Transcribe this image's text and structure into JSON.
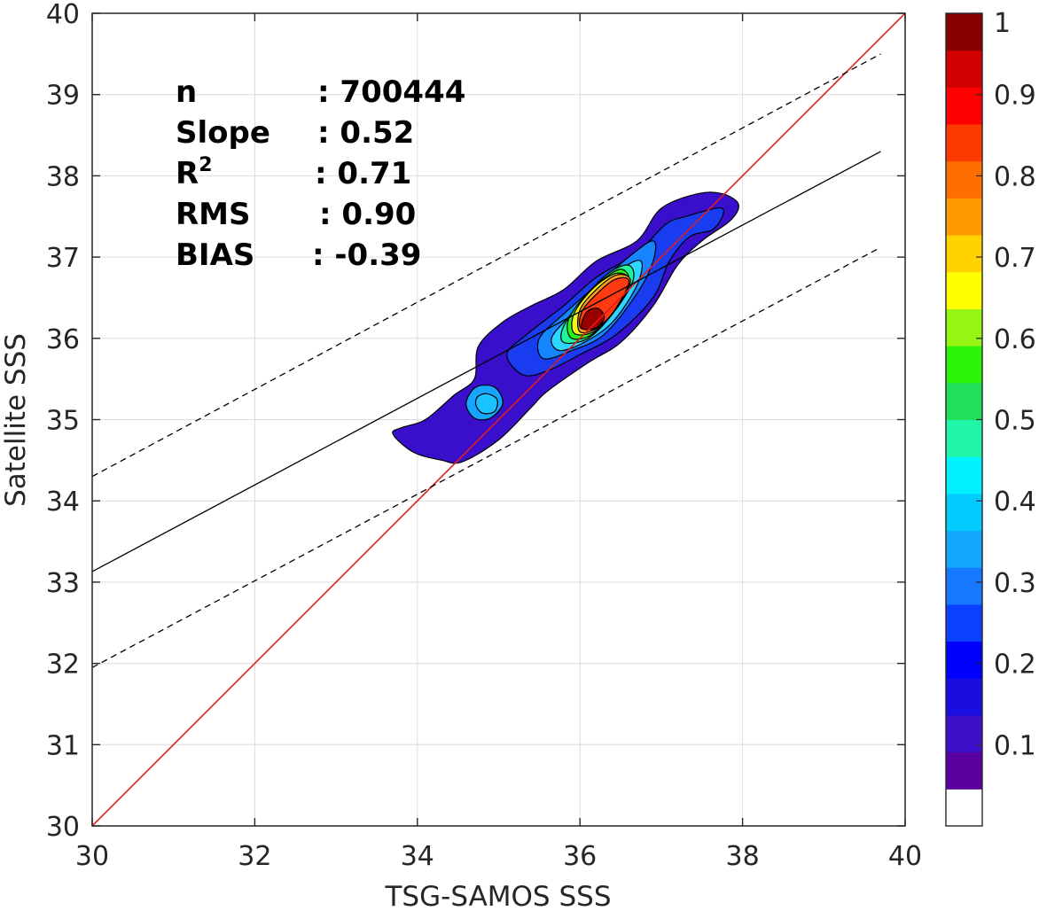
{
  "chart_data": {
    "type": "heatmap",
    "subtype": "filled-contour density scatter",
    "xlabel": "TSG-SAMOS SSS",
    "ylabel": "Satellite SSS",
    "xlim": [
      30,
      40
    ],
    "ylim": [
      30,
      40
    ],
    "xticks": [
      30,
      32,
      34,
      36,
      38,
      40
    ],
    "yticks": [
      30,
      31,
      32,
      33,
      34,
      35,
      36,
      37,
      38,
      39,
      40
    ],
    "grid": true,
    "stats": [
      {
        "label": "n",
        "value": ": 700444"
      },
      {
        "label": "Slope",
        "value": ": 0.52"
      },
      {
        "label": "R",
        "sup": "2",
        "value": ": 0.71"
      },
      {
        "label": "RMS",
        "value": ": 0.90"
      },
      {
        "label": "BIAS",
        "value": ": -0.39"
      }
    ],
    "lines": [
      {
        "kind": "one-to-one",
        "color": "#e41a1c",
        "style": "solid",
        "points": [
          [
            30,
            30
          ],
          [
            40,
            40
          ]
        ]
      },
      {
        "kind": "regression",
        "color": "#000000",
        "style": "solid",
        "points": [
          [
            30,
            33.13
          ],
          [
            39.7,
            38.3
          ]
        ]
      },
      {
        "kind": "upper-bound",
        "color": "#000000",
        "style": "dashed",
        "points": [
          [
            30,
            34.3
          ],
          [
            39.7,
            39.5
          ]
        ]
      },
      {
        "kind": "lower-bound",
        "color": "#000000",
        "style": "dashed",
        "points": [
          [
            30,
            31.95
          ],
          [
            39.7,
            37.12
          ]
        ]
      }
    ],
    "density": {
      "main_peak": {
        "x": 36.2,
        "y": 36.3
      },
      "secondary_peak": {
        "x": 34.9,
        "y": 35.2
      },
      "contours": [
        {
          "level": 0.05,
          "color": "#3a0fcb",
          "points": [
            [
              33.8,
              34.9
            ],
            [
              33.7,
              34.82
            ],
            [
              33.95,
              34.6
            ],
            [
              34.3,
              34.5
            ],
            [
              34.55,
              34.48
            ],
            [
              35.0,
              34.75
            ],
            [
              35.4,
              35.15
            ],
            [
              35.6,
              35.35
            ],
            [
              36.1,
              35.7
            ],
            [
              36.5,
              35.95
            ],
            [
              36.9,
              36.4
            ],
            [
              37.2,
              36.9
            ],
            [
              37.5,
              37.2
            ],
            [
              37.85,
              37.45
            ],
            [
              37.95,
              37.65
            ],
            [
              37.75,
              37.78
            ],
            [
              37.45,
              37.78
            ],
            [
              37.0,
              37.6
            ],
            [
              36.7,
              37.2
            ],
            [
              36.2,
              36.95
            ],
            [
              35.8,
              36.6
            ],
            [
              35.4,
              36.4
            ],
            [
              35.05,
              36.2
            ],
            [
              34.75,
              35.9
            ],
            [
              34.7,
              35.5
            ],
            [
              34.45,
              35.3
            ],
            [
              34.1,
              35.0
            ]
          ]
        },
        {
          "level": 0.15,
          "color": "#1a3cf0",
          "points": [
            [
              35.3,
              35.55
            ],
            [
              35.6,
              35.6
            ],
            [
              36.0,
              35.8
            ],
            [
              36.45,
              36.05
            ],
            [
              36.9,
              36.5
            ],
            [
              37.1,
              36.95
            ],
            [
              37.35,
              37.25
            ],
            [
              37.65,
              37.35
            ],
            [
              37.75,
              37.6
            ],
            [
              37.3,
              37.5
            ],
            [
              37.05,
              37.4
            ],
            [
              36.7,
              37.05
            ],
            [
              36.2,
              36.75
            ],
            [
              35.8,
              36.4
            ],
            [
              35.35,
              36.05
            ],
            [
              35.1,
              35.8
            ]
          ]
        },
        {
          "level": 0.25,
          "color": "#1685ff",
          "points": [
            [
              35.55,
              35.75
            ],
            [
              35.9,
              35.85
            ],
            [
              36.3,
              36.05
            ],
            [
              36.7,
              36.55
            ],
            [
              36.9,
              36.95
            ],
            [
              36.9,
              37.2
            ],
            [
              36.6,
              37.0
            ],
            [
              36.2,
              36.65
            ],
            [
              35.8,
              36.3
            ],
            [
              35.5,
              36.0
            ]
          ]
        },
        {
          "level": 0.35,
          "color": "#2dd6ff",
          "points": [
            [
              35.75,
              35.85
            ],
            [
              36.05,
              35.95
            ],
            [
              36.4,
              36.2
            ],
            [
              36.7,
              36.65
            ],
            [
              36.75,
              36.95
            ],
            [
              36.5,
              36.85
            ],
            [
              36.15,
              36.55
            ],
            [
              35.85,
              36.25
            ],
            [
              35.65,
              36.0
            ]
          ]
        },
        {
          "level": 0.45,
          "color": "#1ff59a",
          "points": [
            [
              35.8,
              35.95
            ],
            [
              36.1,
              36.0
            ],
            [
              36.4,
              36.3
            ],
            [
              36.65,
              36.7
            ],
            [
              36.6,
              36.9
            ],
            [
              36.35,
              36.8
            ],
            [
              36.05,
              36.5
            ],
            [
              35.8,
              36.15
            ]
          ]
        },
        {
          "level": 0.55,
          "color": "#2cf31a",
          "points": [
            [
              35.9,
              36.0
            ],
            [
              36.15,
              36.05
            ],
            [
              36.4,
              36.35
            ],
            [
              36.6,
              36.7
            ],
            [
              36.5,
              36.85
            ],
            [
              36.25,
              36.7
            ],
            [
              36.0,
              36.45
            ],
            [
              35.85,
              36.2
            ]
          ]
        },
        {
          "level": 0.65,
          "color": "#f5f51a",
          "points": [
            [
              35.95,
              36.05
            ],
            [
              36.2,
              36.1
            ],
            [
              36.45,
              36.4
            ],
            [
              36.6,
              36.72
            ],
            [
              36.45,
              36.8
            ],
            [
              36.2,
              36.65
            ],
            [
              35.98,
              36.4
            ],
            [
              35.9,
              36.2
            ]
          ]
        },
        {
          "level": 0.75,
          "color": "#ff9a1a",
          "points": [
            [
              36.0,
              36.08
            ],
            [
              36.25,
              36.15
            ],
            [
              36.5,
              36.45
            ],
            [
              36.62,
              36.72
            ],
            [
              36.45,
              36.78
            ],
            [
              36.2,
              36.6
            ],
            [
              36.0,
              36.35
            ]
          ]
        },
        {
          "level": 0.85,
          "color": "#ff3a10",
          "points": [
            [
              36.02,
              36.12
            ],
            [
              36.3,
              36.2
            ],
            [
              36.52,
              36.5
            ],
            [
              36.6,
              36.72
            ],
            [
              36.42,
              36.72
            ],
            [
              36.18,
              36.52
            ],
            [
              36.02,
              36.32
            ]
          ]
        },
        {
          "level": 0.95,
          "color": "#9a0000",
          "points": [
            [
              36.02,
              36.13
            ],
            [
              36.18,
              36.12
            ],
            [
              36.3,
              36.25
            ],
            [
              36.22,
              36.37
            ],
            [
              36.08,
              36.32
            ]
          ]
        },
        {
          "level": 0.25,
          "color": "#16a5ff",
          "points": [
            [
              34.6,
              35.2
            ],
            [
              34.7,
              35.02
            ],
            [
              34.9,
              35.02
            ],
            [
              35.05,
              35.2
            ],
            [
              34.95,
              35.4
            ],
            [
              34.72,
              35.4
            ]
          ]
        },
        {
          "level": 0.35,
          "color": "#19c3ff",
          "points": [
            [
              34.72,
              35.18
            ],
            [
              34.8,
              35.08
            ],
            [
              34.95,
              35.1
            ],
            [
              34.98,
              35.25
            ],
            [
              34.85,
              35.32
            ],
            [
              34.74,
              35.28
            ]
          ]
        }
      ]
    },
    "colorbar": {
      "min": 0,
      "max": 1,
      "ticks": [
        "1",
        "0.9",
        "0.8",
        "0.7",
        "0.6",
        "0.5",
        "0.4",
        "0.3",
        "0.2",
        "0.1"
      ],
      "tick_values": [
        1,
        0.9,
        0.8,
        0.7,
        0.6,
        0.5,
        0.4,
        0.3,
        0.2,
        0.1
      ],
      "colors": [
        "#ffffff",
        "#5a009e",
        "#3c0fc8",
        "#1a0de0",
        "#0000ff",
        "#0a40ff",
        "#1678ff",
        "#12a6ff",
        "#00ccff",
        "#00f2ff",
        "#20f5a8",
        "#20e05a",
        "#2cf30a",
        "#96f512",
        "#ffff00",
        "#ffd200",
        "#ff9a00",
        "#ff6e00",
        "#ff3a00",
        "#ff0000",
        "#d00000",
        "#8a0000"
      ]
    }
  }
}
